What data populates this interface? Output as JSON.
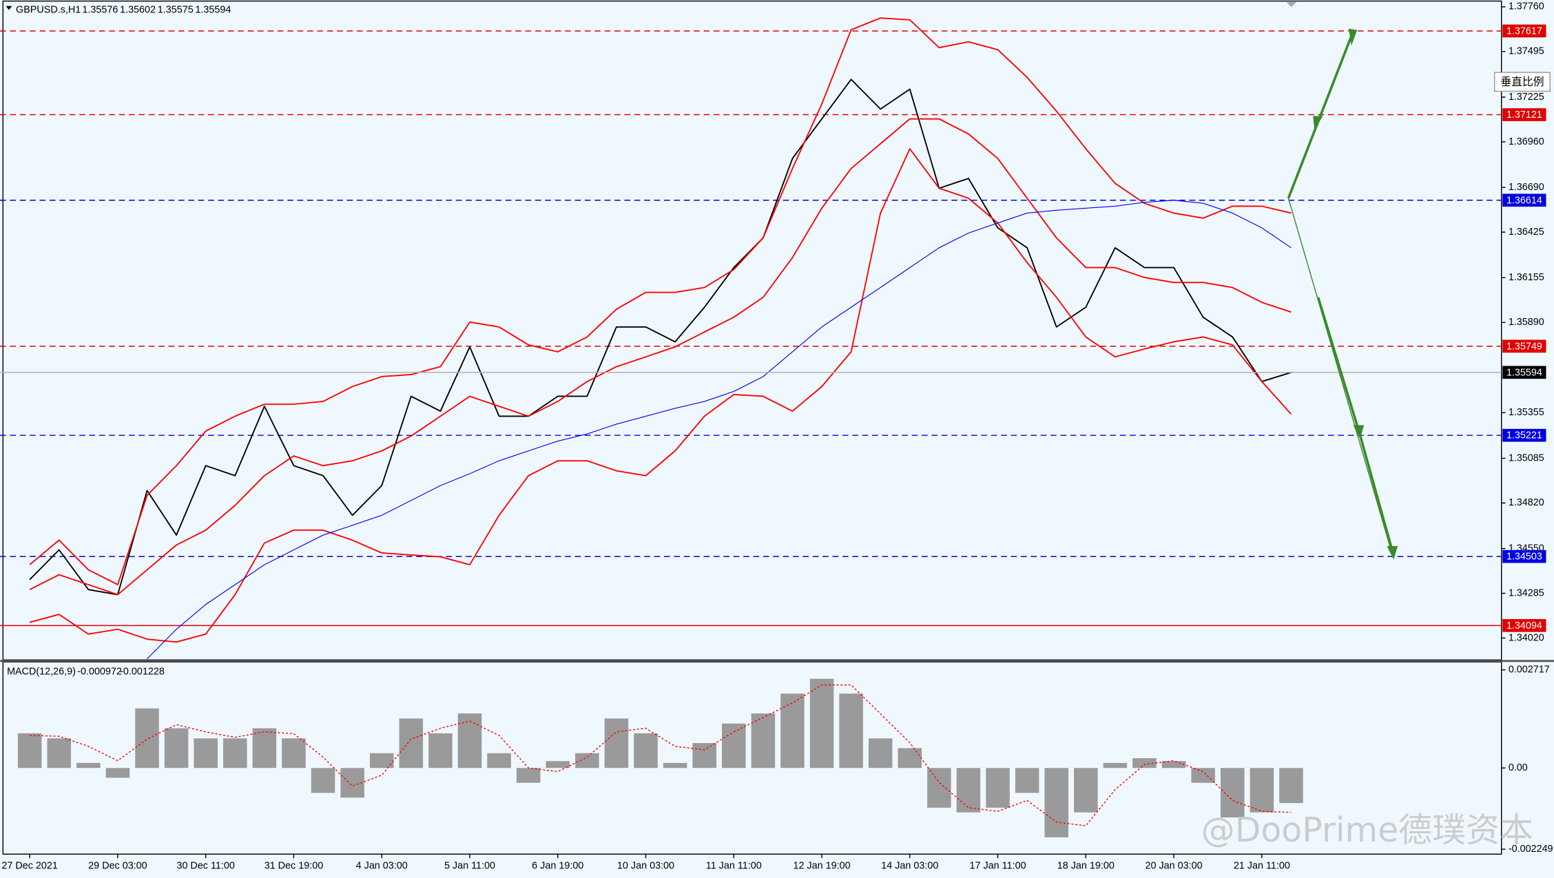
{
  "chart_data": [
    {
      "type": "line",
      "title": "GBPUSD.s,H1",
      "ohlc": [
        1.35576,
        1.35602,
        1.35575,
        1.35594
      ],
      "categories": [
        "27 Dec 2021",
        null,
        null,
        "29 Dec 03:00",
        null,
        null,
        "30 Dec 11:00",
        null,
        null,
        "31 Dec 19:00",
        null,
        null,
        "4 Jan 03:00",
        null,
        null,
        "5 Jan 11:00",
        null,
        null,
        "6 Jan 19:00",
        null,
        null,
        "10 Jan 03:00",
        null,
        null,
        "11 Jan 11:00",
        null,
        null,
        "12 Jan 19:00",
        null,
        null,
        "14 Jan 03:00",
        null,
        null,
        "17 Jan 11:00",
        null,
        null,
        "18 Jan 19:00",
        null,
        null,
        "20 Jan 03:00",
        null,
        null,
        "21 Jan 11:00",
        null
      ],
      "series": [
        {
          "color": "#000000",
          "values": [
            1.34366,
            1.34542,
            1.34307,
            1.34277,
            1.34894,
            1.3463,
            1.35041,
            1.34982,
            1.35393,
            1.35041,
            1.34982,
            1.34747,
            1.34923,
            1.35452,
            1.35364,
            1.35745,
            1.35334,
            1.35334,
            1.35452,
            1.35452,
            1.35863,
            1.35863,
            1.35775,
            1.3598,
            1.36215,
            1.36391,
            1.36861,
            1.37096,
            1.3733,
            1.37154,
            1.37272,
            1.36685,
            1.36743,
            1.3645,
            1.36332,
            1.35863,
            1.3598,
            1.36332,
            1.36215,
            1.36215,
            1.35921,
            1.35804,
            1.3554,
            1.35594
          ]
        },
        {
          "color": "#ff0000",
          "values": [
            1.34454,
            1.346,
            1.34424,
            1.34336,
            1.34865,
            1.35041,
            1.35246,
            1.35334,
            1.35405,
            1.35405,
            1.35422,
            1.3551,
            1.35569,
            1.35581,
            1.35628,
            1.35892,
            1.35863,
            1.35757,
            1.35716,
            1.35804,
            1.35968,
            1.36068,
            1.36068,
            1.36097,
            1.36203,
            1.36391,
            1.36802,
            1.37184,
            1.37624,
            1.37694,
            1.37683,
            1.37518,
            1.37553,
            1.37506,
            1.37342,
            1.37142,
            1.36919,
            1.36714,
            1.36596,
            1.36538,
            1.36508,
            1.36579,
            1.36579,
            1.36538
          ]
        },
        {
          "color": "#ff0000",
          "values": [
            1.34307,
            1.34395,
            1.34336,
            1.34277,
            1.34424,
            1.34571,
            1.34659,
            1.34806,
            1.34982,
            1.35099,
            1.35041,
            1.3507,
            1.35129,
            1.35217,
            1.35334,
            1.35452,
            1.35393,
            1.35334,
            1.35422,
            1.3554,
            1.35628,
            1.35686,
            1.35745,
            1.35833,
            1.35921,
            1.36039,
            1.36274,
            1.36567,
            1.36802,
            1.36949,
            1.37096,
            1.37096,
            1.37007,
            1.36861,
            1.36626,
            1.36391,
            1.36215,
            1.36215,
            1.36156,
            1.36127,
            1.36127,
            1.36097,
            1.36009,
            1.35951
          ]
        },
        {
          "color": "#ff0000",
          "values": [
            1.34113,
            1.3416,
            1.34043,
            1.34072,
            1.34013,
            1.33996,
            1.34043,
            1.34277,
            1.34583,
            1.34659,
            1.34659,
            1.346,
            1.34524,
            1.34512,
            1.34501,
            1.34454,
            1.34747,
            1.34982,
            1.3507,
            1.3507,
            1.35011,
            1.34982,
            1.35129,
            1.35334,
            1.35463,
            1.35452,
            1.35364,
            1.3551,
            1.35716,
            1.36538,
            1.36919,
            1.36685,
            1.36626,
            1.36479,
            1.36244,
            1.36039,
            1.35804,
            1.35686,
            1.35733,
            1.35775,
            1.35804,
            1.35757,
            1.3554,
            1.35346
          ]
        },
        {
          "color": "#0000ff",
          "values": [
            null,
            null,
            null,
            null,
            1.33896,
            1.34072,
            1.34219,
            1.34336,
            1.34454,
            1.34542,
            1.3463,
            1.34688,
            1.34747,
            1.34835,
            1.34923,
            1.34994,
            1.3507,
            1.35129,
            1.35187,
            1.35229,
            1.35287,
            1.35334,
            1.35381,
            1.35422,
            1.35481,
            1.35569,
            1.35716,
            1.35863,
            1.3598,
            1.36097,
            1.36215,
            1.36332,
            1.3642,
            1.36479,
            1.36538,
            1.36555,
            1.36567,
            1.36579,
            1.36602,
            1.36614,
            1.36596,
            1.36538,
            1.3645,
            1.36332
          ]
        }
      ],
      "levels": [
        {
          "value": 1.37617,
          "color": "#e00000",
          "dashed": true
        },
        {
          "value": 1.37121,
          "color": "#e00000",
          "dashed": true
        },
        {
          "value": 1.36614,
          "color": "#0000e0",
          "dashed": true
        },
        {
          "value": 1.35749,
          "color": "#e00000",
          "dashed": true
        },
        {
          "value": 1.35221,
          "color": "#0000e0",
          "dashed": true
        },
        {
          "value": 1.34503,
          "color": "#0000e0",
          "dashed": true
        },
        {
          "value": 1.34094,
          "color": "#e00000",
          "dashed": false
        }
      ],
      "ylim": [
        1.3389,
        1.378
      ],
      "yticks": [
        {
          "value": 1.3776,
          "label": "1.37760"
        },
        1.37495,
        1.37225,
        {
          "value": 1.3696,
          "label": "1.36960"
        },
        {
          "value": 1.3669,
          "label": "1.36690"
        },
        1.36425,
        1.36155,
        {
          "value": 1.3589,
          "label": "1.35890"
        },
        1.35355,
        1.35085,
        {
          "value": 1.3482,
          "label": "1.34820"
        },
        {
          "value": 1.3455,
          "label": "1.34550"
        },
        1.34285,
        {
          "value": 1.3402,
          "label": "1.34020"
        }
      ]
    },
    {
      "type": "bar",
      "title": "MACD(12,26,9)",
      "series": [
        {
          "color": "#9a9a9a",
          "values": [
            0.00096,
            0.00082,
            0.00014,
            -0.00027,
            0.00165,
            0.0011,
            0.00082,
            0.00082,
            0.0011,
            0.00082,
            -0.00069,
            -0.00082,
            0.00041,
            0.00137,
            0.00096,
            0.00151,
            0.00041,
            -0.00041,
            0.00019,
            0.00041,
            0.00137,
            0.00096,
            0.00014,
            0.00069,
            0.00123,
            0.00151,
            0.00206,
            0.00247,
            0.00206,
            0.00082,
            0.00055,
            -0.0011,
            -0.00123,
            -0.0011,
            -0.00069,
            -0.00192,
            -0.00123,
            0.00014,
            0.00027,
            0.00019,
            -0.00041,
            -0.00137,
            -0.00123,
            -0.000972
          ]
        },
        {
          "color": "#ff0000",
          "dashed": true,
          "values": [
            0.0009,
            0.00088,
            0.0006,
            0.0002,
            0.0008,
            0.0012,
            0.001,
            0.00085,
            0.001,
            0.00095,
            0.0003,
            -0.0005,
            -0.0002,
            0.0008,
            0.0011,
            0.0013,
            0.0009,
            0,
            -0.0001,
            0.0003,
            0.001,
            0.0011,
            0.0006,
            0.0005,
            0.001,
            0.0014,
            0.0018,
            0.0023,
            0.0023,
            0.0015,
            0.0007,
            -0.0004,
            -0.0011,
            -0.0012,
            -0.0009,
            -0.0015,
            -0.0016,
            -0.0006,
            0.0001,
            0.0002,
            -0.0001,
            -0.0009,
            -0.0012,
            -0.001228
          ]
        }
      ],
      "ylim": [
        -0.002386,
        0.002882
      ],
      "yticks": [
        0.002717,
        {
          "value": 0,
          "label": "0.00"
        },
        -0.002249
      ]
    }
  ],
  "button": "垂直比例",
  "watermark": "@DooPrime德璞资本"
}
